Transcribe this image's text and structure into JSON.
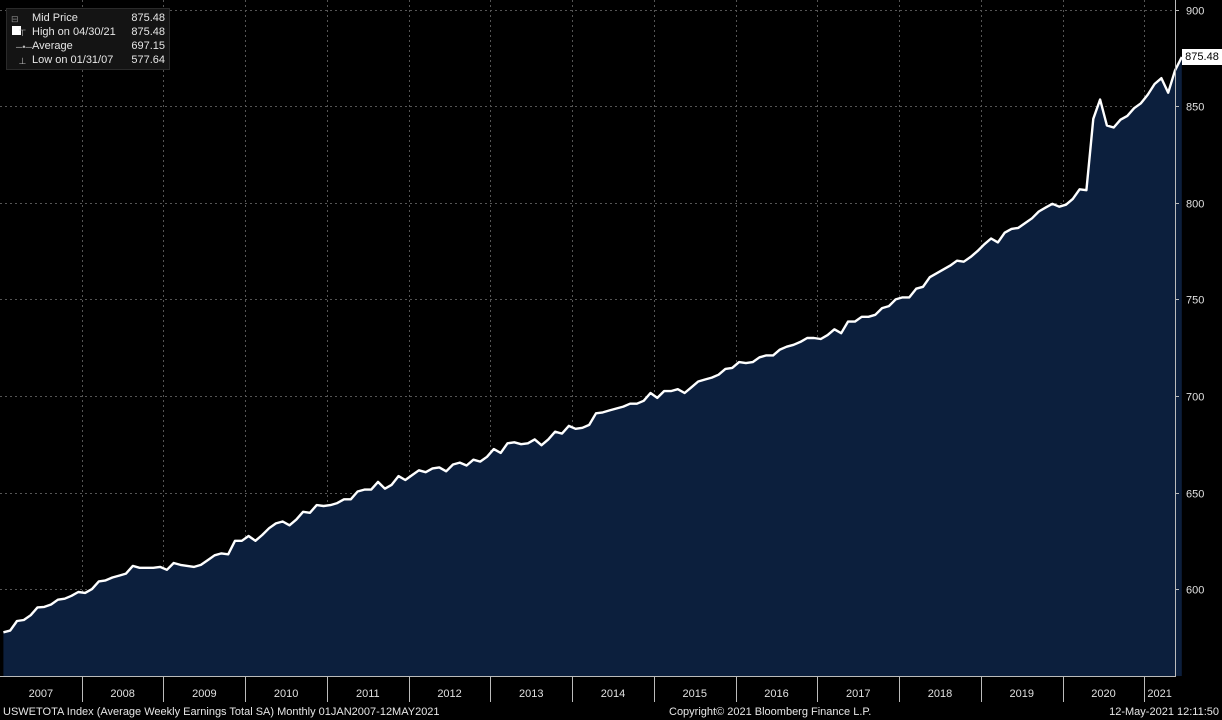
{
  "legend": {
    "items": [
      {
        "label": "Mid Price",
        "value": "875.48",
        "icon": "square-swatch-icon"
      },
      {
        "label": "High on 04/30/21",
        "value": "875.48",
        "icon": "high-marker-icon"
      },
      {
        "label": "Average",
        "value": "697.15",
        "icon": "average-marker-icon"
      },
      {
        "label": "Low on 01/31/07",
        "value": "577.64",
        "icon": "low-marker-icon"
      }
    ]
  },
  "last_value_tag": "875.48",
  "footer": {
    "left": "USWETOTA Index (Average Weekly Earnings Total SA)  Monthly 01JAN2007-12MAY2021",
    "center": "Copyright© 2021 Bloomberg Finance L.P.",
    "right": "12-May-2021 12:11:50"
  },
  "colors": {
    "background": "#000000",
    "area_fill": "#0c1f3d",
    "line": "#ffffff",
    "grid": "#555555"
  },
  "chart_data": {
    "type": "area",
    "title": "",
    "xlabel": "",
    "ylabel": "",
    "ylim": [
      555,
      905
    ],
    "yticks": [
      600,
      650,
      700,
      750,
      800,
      850,
      900
    ],
    "year_labels": [
      "2007",
      "2008",
      "2009",
      "2010",
      "2011",
      "2012",
      "2013",
      "2014",
      "2015",
      "2016",
      "2017",
      "2018",
      "2019",
      "2020",
      "2021"
    ],
    "grid": true,
    "legend_position": "top-left",
    "x_start": "2007-01",
    "x_end": "2021-04",
    "series": [
      {
        "name": "Mid Price",
        "values": [
          577.64,
          578.5,
          583.5,
          584.0,
          586.5,
          590.5,
          590.8,
          592.0,
          594.5,
          595.0,
          596.5,
          598.5,
          598.0,
          600.0,
          604.0,
          604.5,
          606.0,
          607.0,
          608.0,
          612.0,
          611.0,
          611.0,
          611.0,
          611.5,
          610.0,
          613.5,
          612.5,
          612.0,
          611.5,
          612.5,
          615.0,
          617.5,
          618.5,
          618.0,
          625.0,
          625.0,
          627.5,
          625.0,
          628.0,
          631.5,
          634.0,
          635.0,
          633.0,
          636.0,
          640.0,
          639.5,
          643.5,
          643.0,
          643.5,
          644.5,
          646.5,
          646.5,
          650.5,
          651.5,
          651.5,
          655.5,
          652.0,
          654.0,
          658.5,
          656.5,
          659.0,
          661.5,
          660.5,
          662.5,
          663.0,
          661.0,
          664.5,
          665.5,
          664.0,
          667.0,
          666.0,
          668.5,
          672.5,
          670.5,
          675.5,
          676.0,
          675.0,
          675.5,
          677.5,
          674.5,
          677.5,
          681.5,
          680.5,
          684.5,
          683.0,
          683.5,
          685.0,
          691.0,
          691.5,
          692.5,
          693.5,
          694.5,
          696.0,
          696.0,
          697.5,
          701.5,
          699.0,
          702.5,
          702.5,
          703.5,
          701.5,
          704.5,
          707.5,
          708.5,
          709.5,
          711.0,
          714.0,
          714.5,
          717.5,
          717.0,
          717.5,
          720.0,
          721.0,
          721.0,
          724.0,
          725.5,
          726.5,
          728.0,
          730.0,
          730.0,
          729.5,
          731.5,
          734.5,
          732.5,
          738.5,
          738.5,
          741.0,
          741.0,
          742.0,
          745.5,
          746.5,
          750.0,
          751.0,
          751.0,
          755.5,
          756.5,
          761.5,
          763.5,
          765.5,
          767.5,
          770.0,
          769.5,
          772.0,
          775.0,
          778.5,
          781.5,
          779.5,
          784.5,
          786.5,
          787.0,
          789.5,
          792.0,
          795.5,
          797.5,
          799.5,
          798.0,
          799.0,
          802.0,
          807.0,
          806.5,
          843.5,
          853.5,
          840.0,
          839.0,
          843.0,
          845.0,
          849.0,
          851.5,
          856.0,
          861.5,
          864.5,
          857.0,
          868.5,
          875.48
        ]
      }
    ]
  }
}
